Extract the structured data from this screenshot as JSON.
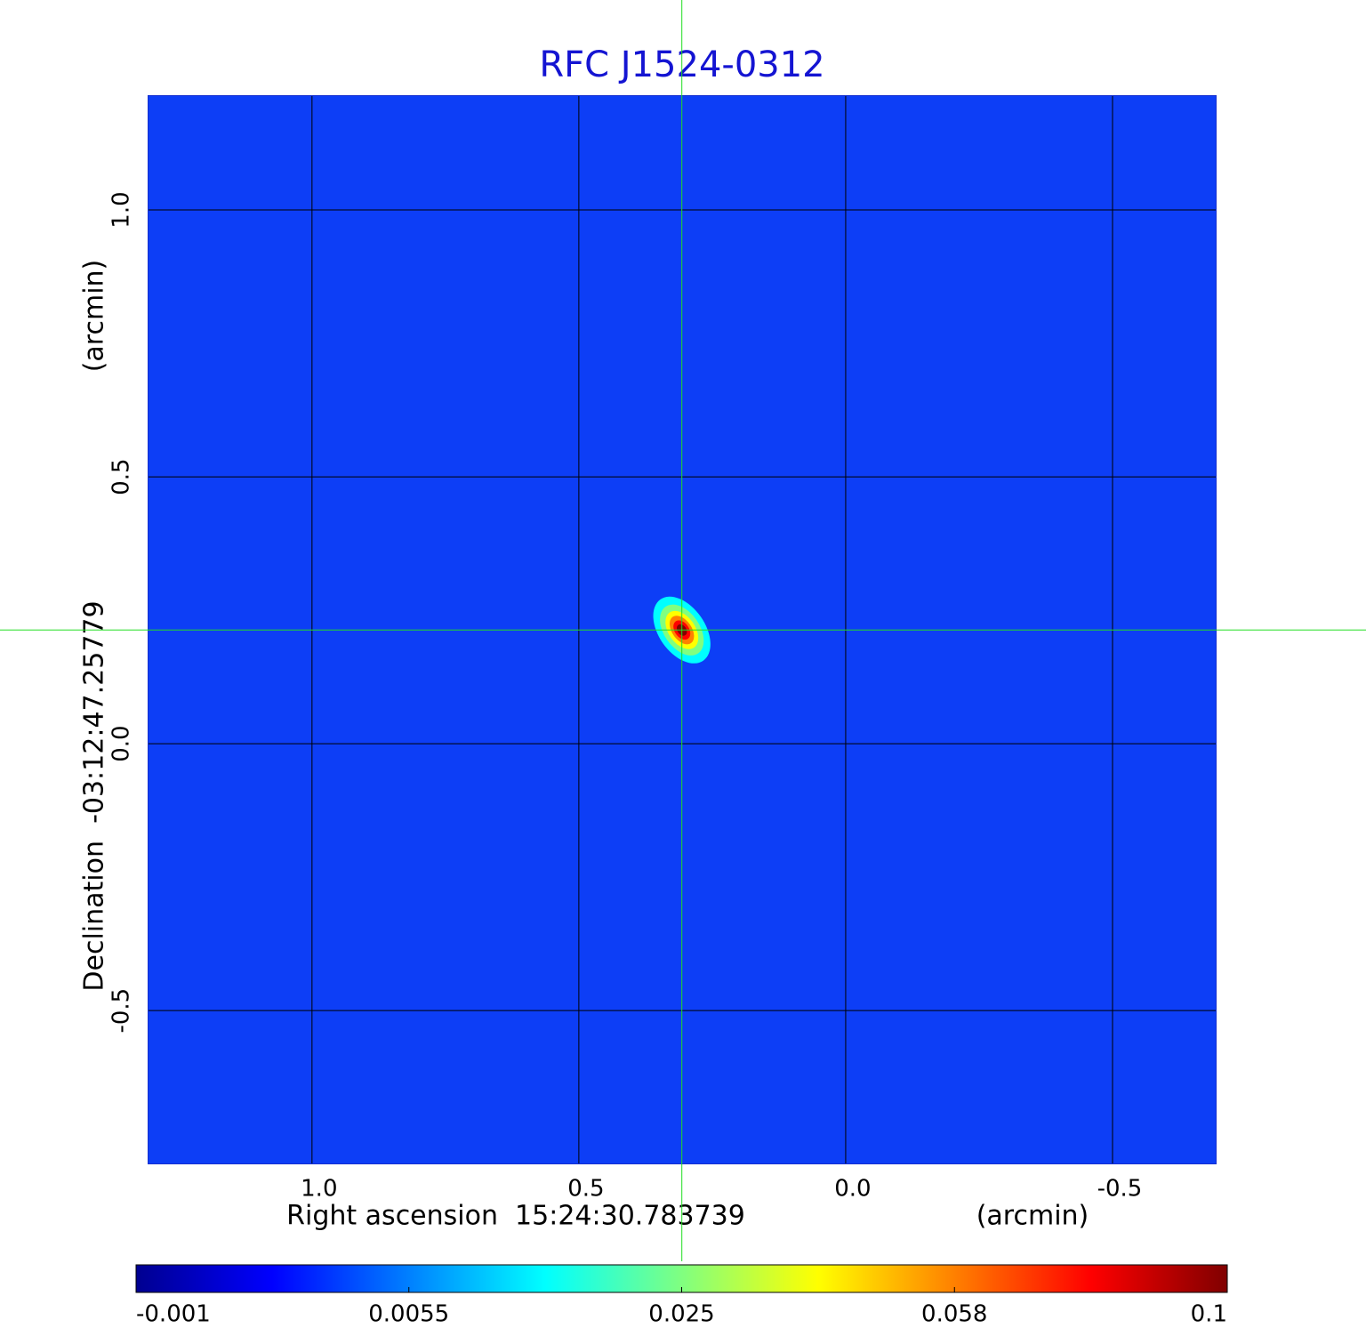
{
  "chart_data": {
    "type": "image",
    "title": "RFC J1524-0312",
    "xlabel": "Right ascension  15:24:30.783739",
    "xunit": "(arcmin)",
    "ylabel": "Declination  -03:12:47.25779",
    "yunit": "(arcmin)",
    "xlim": [
      1.308,
      -0.695
    ],
    "ylim": [
      -0.788,
      1.215
    ],
    "xticks": [
      {
        "value": 1,
        "label": "1.0"
      },
      0.5,
      {
        "value": 0,
        "label": "0.0"
      },
      -0.5
    ],
    "yticks": [
      {
        "value": 1,
        "label": "1.0"
      },
      0.5,
      {
        "value": 0,
        "label": "0.0"
      },
      -0.5
    ],
    "grid": true,
    "background_color": "#0d3ef6",
    "source": {
      "x": 0.307,
      "y": 0.213
    },
    "crosshair_color": "#22dd22",
    "colorbar": {
      "ticks": [
        -0.001,
        0.0055,
        0.025,
        0.058,
        0.1
      ],
      "colormap": [
        "#000090",
        "#0000ff",
        "#0080ff",
        "#00ffff",
        "#80ff80",
        "#ffff00",
        "#ff8000",
        "#ff0000",
        "#800000"
      ]
    }
  }
}
